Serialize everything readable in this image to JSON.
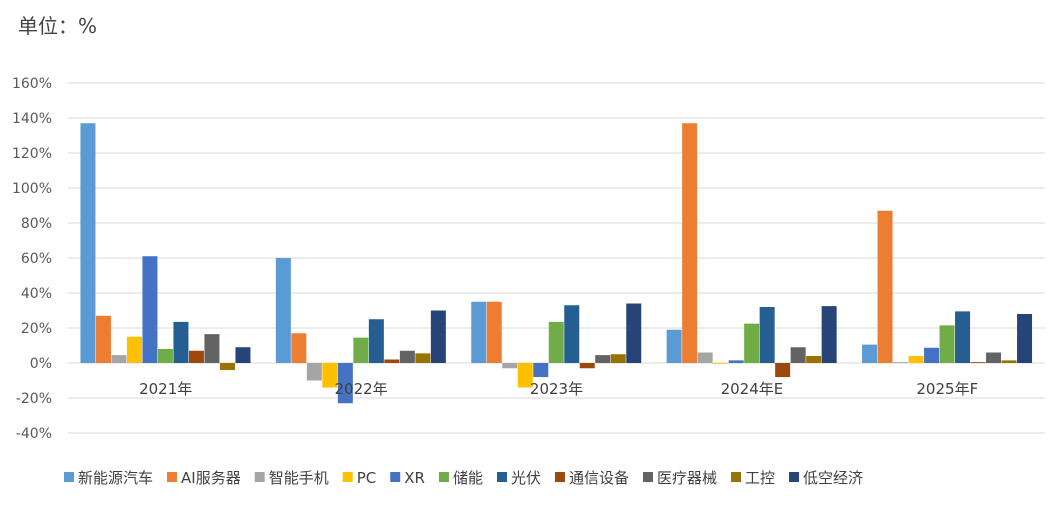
{
  "unit_label": "单位：%",
  "chart_data": {
    "type": "bar",
    "title": "",
    "xlabel": "",
    "ylabel": "",
    "ylim": [
      -40,
      160
    ],
    "ytick_step": 20,
    "ytick_suffix": "%",
    "grid": true,
    "legend_position": "bottom",
    "categories": [
      "2021年",
      "2022年",
      "2023年",
      "2024年E",
      "2025年F"
    ],
    "series": [
      {
        "name": "新能源汽车",
        "color": "#5B9BD5",
        "values": [
          137,
          60,
          35,
          19,
          10.5
        ]
      },
      {
        "name": "AI服务器",
        "color": "#ED7D31",
        "values": [
          27,
          17,
          35,
          137,
          87
        ]
      },
      {
        "name": "智能手机",
        "color": "#A5A5A5",
        "values": [
          4.5,
          -10,
          -3,
          6,
          0.5
        ]
      },
      {
        "name": "PC",
        "color": "#FFC000",
        "values": [
          15,
          -14,
          -14,
          0,
          4
        ]
      },
      {
        "name": "XR",
        "color": "#4472C4",
        "values": [
          61,
          -23,
          -8,
          1.5,
          8.7
        ]
      },
      {
        "name": "储能",
        "color": "#70AD47",
        "values": [
          8,
          14.5,
          23.5,
          22.5,
          21.5
        ]
      },
      {
        "name": "光伏",
        "color": "#255E91",
        "values": [
          23.5,
          25,
          33,
          32,
          29.5
        ]
      },
      {
        "name": "通信设备",
        "color": "#9E480E",
        "values": [
          7,
          2,
          -3,
          -8,
          0.5
        ]
      },
      {
        "name": "医疗器械",
        "color": "#636363",
        "values": [
          16.5,
          7,
          4.5,
          9,
          6
        ]
      },
      {
        "name": "工控",
        "color": "#997300",
        "values": [
          -4,
          5.5,
          5,
          4,
          1.5
        ]
      },
      {
        "name": "低空经济",
        "color": "#264478",
        "values": [
          9,
          30,
          34,
          32.5,
          28
        ]
      }
    ]
  }
}
